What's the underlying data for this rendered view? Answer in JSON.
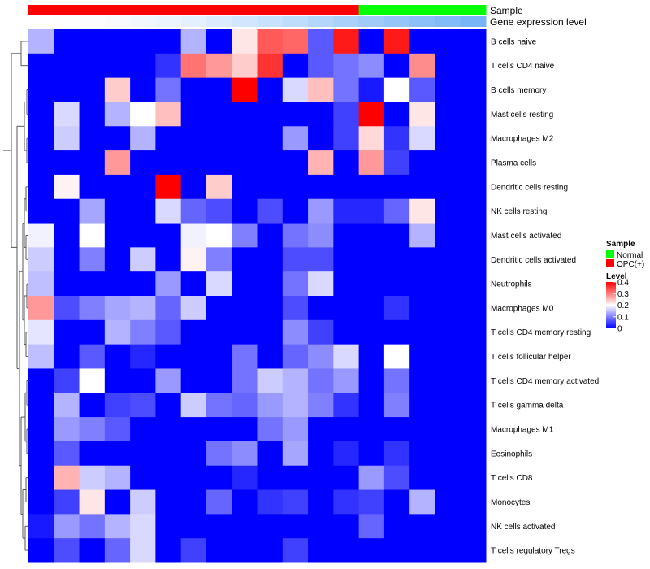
{
  "chart_data": {
    "type": "heatmap",
    "annotation_labels": [
      "Sample",
      "Gene expression level"
    ],
    "sample_groups": [
      "OPC(+)",
      "OPC(+)",
      "OPC(+)",
      "OPC(+)",
      "OPC(+)",
      "OPC(+)",
      "OPC(+)",
      "OPC(+)",
      "OPC(+)",
      "OPC(+)",
      "OPC(+)",
      "OPC(+)",
      "OPC(+)",
      "Normal",
      "Normal",
      "Normal",
      "Normal",
      "Normal"
    ],
    "expression_level_colors": [
      "#ffffff",
      "#fefefe",
      "#fcfcfe",
      "#f8fafe",
      "#f2f7fe",
      "#ecf4fe",
      "#e4f0fe",
      "#dcebfd",
      "#d2e6fd",
      "#c8e1fc",
      "#bedcfb",
      "#b4d6fb",
      "#aad1fa",
      "#a0cbf9",
      "#96c6f9",
      "#8cc0f8",
      "#82bbf8",
      "#78b5f7"
    ],
    "rows": [
      "B cells naive",
      "T cells CD4 naive",
      "B cells memory",
      "Mast cells resting",
      "Macrophages M2",
      "Plasma cells",
      "Dendritic cells resting",
      "NK cells resting",
      "Mast cells activated",
      "Dendritic cells activated",
      "Neutrophils",
      "Macrophages M0",
      "T cells CD4 memory resting",
      "T cells follicular helper",
      "T cells CD4 memory activated",
      "T cells gamma delta",
      "Macrophages M1",
      "Eosinophils",
      "T cells CD8",
      "Monocytes",
      "NK cells activated",
      "T cells regulatory  Tregs"
    ],
    "values": [
      [
        0.14,
        0,
        0,
        0,
        0,
        0,
        0.14,
        0,
        0.22,
        0.33,
        0.32,
        0.07,
        0.38,
        0,
        0.38,
        0,
        0,
        0
      ],
      [
        0,
        0,
        0,
        0,
        0,
        0.04,
        0.31,
        0.28,
        0.24,
        0.36,
        0,
        0.07,
        0.09,
        0.11,
        0,
        0.29,
        0,
        0
      ],
      [
        0,
        0,
        0,
        0.24,
        0,
        0.09,
        0,
        0,
        0.4,
        0,
        0.17,
        0.25,
        0.09,
        0.02,
        0.2,
        0.07,
        0,
        0
      ],
      [
        0,
        0.17,
        0,
        0.14,
        0.2,
        0.25,
        0,
        0,
        0,
        0,
        0,
        0,
        0.05,
        0.4,
        0,
        0.22,
        0,
        0
      ],
      [
        0,
        0.16,
        0,
        0,
        0.14,
        0,
        0,
        0,
        0,
        0,
        0.12,
        0,
        0.05,
        0.23,
        0.04,
        0.17,
        0,
        0
      ],
      [
        0,
        0,
        0,
        0.28,
        0,
        0,
        0,
        0,
        0,
        0,
        0,
        0.26,
        0,
        0.28,
        0.05,
        0,
        0,
        0
      ],
      [
        0,
        0.21,
        0,
        0,
        0,
        0.4,
        0,
        0.24,
        0,
        0,
        0,
        0,
        0,
        0,
        0,
        0,
        0,
        0
      ],
      [
        0,
        0,
        0.13,
        0,
        0,
        0.17,
        0.08,
        0.06,
        0,
        0.06,
        0,
        0.12,
        0.03,
        0.03,
        0.08,
        0.22,
        0,
        0
      ],
      [
        0.19,
        0,
        0.2,
        0,
        0,
        0,
        0.19,
        0.2,
        0.1,
        0,
        0.09,
        0.11,
        0,
        0,
        0,
        0.14,
        0,
        0
      ],
      [
        0.16,
        0,
        0.1,
        0,
        0.16,
        0,
        0.21,
        0.1,
        0,
        0,
        0.06,
        0.06,
        0,
        0,
        0,
        0,
        0,
        0
      ],
      [
        0.15,
        0,
        0,
        0,
        0,
        0.12,
        0,
        0.17,
        0,
        0,
        0.09,
        0.17,
        0,
        0,
        0,
        0,
        0,
        0
      ],
      [
        0.28,
        0.06,
        0.1,
        0.13,
        0.14,
        0.08,
        0.16,
        0,
        0,
        0,
        0.06,
        0,
        0,
        0,
        0.04,
        0,
        0,
        0
      ],
      [
        0.18,
        0,
        0,
        0.14,
        0.1,
        0.07,
        0,
        0,
        0,
        0,
        0.11,
        0.05,
        0,
        0,
        0,
        0,
        0,
        0
      ],
      [
        0.15,
        0,
        0.07,
        0,
        0.03,
        0,
        0,
        0,
        0.09,
        0,
        0.08,
        0.11,
        0.17,
        0,
        0.2,
        0,
        0,
        0
      ],
      [
        0,
        0.05,
        0.2,
        0,
        0,
        0.12,
        0,
        0,
        0.09,
        0.16,
        0.14,
        0.09,
        0.12,
        0,
        0.09,
        0,
        0,
        0
      ],
      [
        0,
        0.14,
        0,
        0.05,
        0.06,
        0,
        0.16,
        0.09,
        0.08,
        0.12,
        0.14,
        0.1,
        0.04,
        0,
        0.1,
        0,
        0,
        0
      ],
      [
        0,
        0.12,
        0.1,
        0.07,
        0,
        0,
        0,
        0,
        0,
        0.09,
        0.12,
        0,
        0,
        0,
        0,
        0,
        0,
        0
      ],
      [
        0,
        0.07,
        0,
        0,
        0,
        0,
        0,
        0.09,
        0.11,
        0,
        0.13,
        0,
        0.03,
        0,
        0.04,
        0,
        0,
        0
      ],
      [
        0,
        0.26,
        0.16,
        0.14,
        0,
        0,
        0,
        0,
        0.03,
        0,
        0,
        0,
        0,
        0.12,
        0.06,
        0,
        0,
        0
      ],
      [
        0,
        0.05,
        0.22,
        0,
        0.16,
        0,
        0,
        0.08,
        0,
        0.04,
        0.05,
        0,
        0.04,
        0.05,
        0,
        0.14,
        0,
        0
      ],
      [
        0.02,
        0.12,
        0.09,
        0.14,
        0.17,
        0,
        0,
        0,
        0,
        0,
        0,
        0,
        0,
        0.08,
        0,
        0,
        0,
        0
      ],
      [
        0,
        0.06,
        0,
        0.08,
        0.17,
        0,
        0.05,
        0,
        0,
        0,
        0.05,
        0,
        0,
        0,
        0,
        0,
        0,
        0
      ]
    ],
    "scale": {
      "min": 0,
      "mid": 0.2,
      "max": 0.4,
      "low_color": "#0000ff",
      "mid_color": "#ffffff",
      "high_color": "#ff0000"
    },
    "legend": {
      "sample_title": "Sample",
      "sample_entries": [
        {
          "label": "Normal",
          "color": "#00ff00"
        },
        {
          "label": "OPC(+)",
          "color": "#ff0000"
        }
      ],
      "level_title": "Level",
      "level_ticks": [
        "0.4",
        "0.3",
        "0.2",
        "0.1",
        "0"
      ],
      "level_tick_values": [
        0.4,
        0.3,
        0.2,
        0.1,
        0
      ],
      "placement": "right"
    }
  }
}
